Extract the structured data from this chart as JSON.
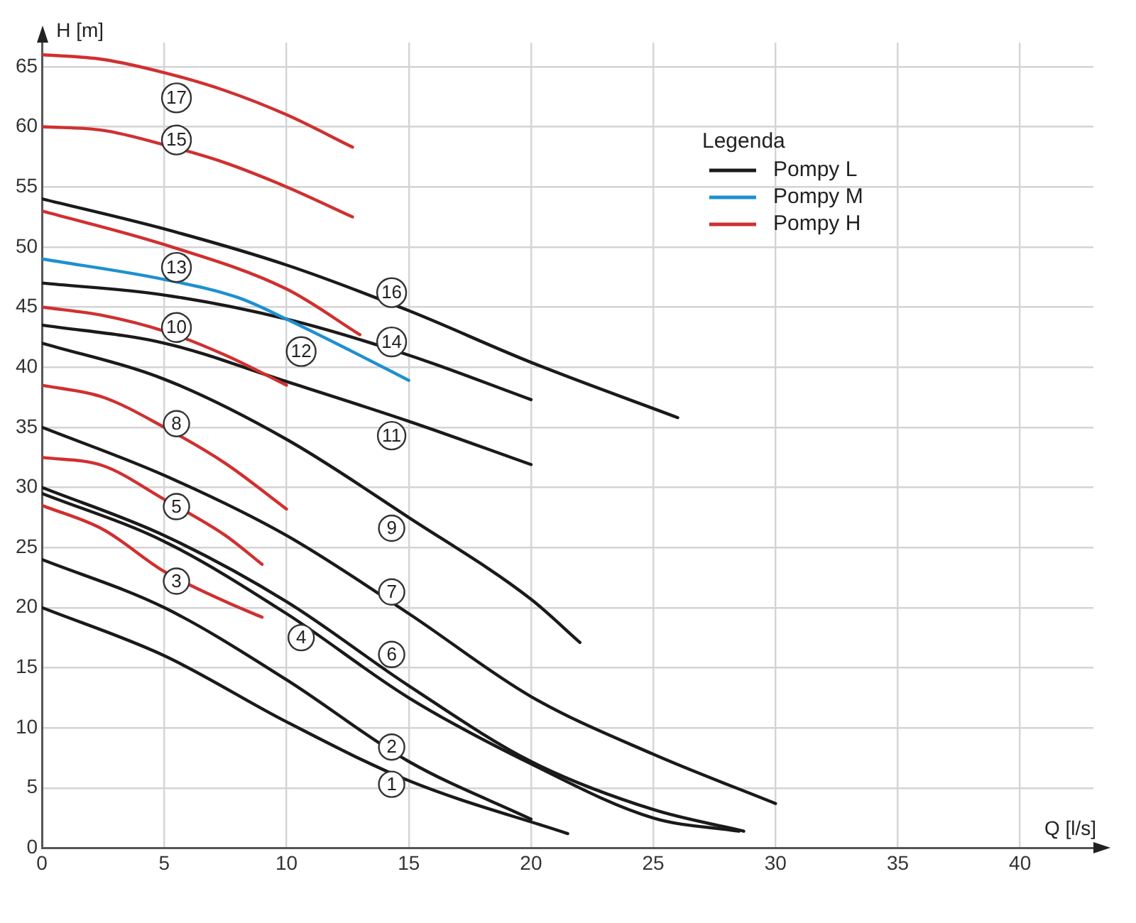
{
  "chart_data": {
    "type": "line",
    "xlabel": "Q [l/s]",
    "ylabel": "H [m]",
    "legend_title": "Legenda",
    "legend": "top right",
    "grid": true,
    "marker": "none",
    "line_style": "solid",
    "xlim": [
      0,
      43
    ],
    "ylim": [
      0,
      67
    ],
    "xticks": [
      0,
      5,
      10,
      15,
      20,
      25,
      30,
      35,
      40
    ],
    "yticks": [
      0,
      5,
      10,
      15,
      20,
      25,
      30,
      35,
      40,
      45,
      50,
      55,
      60,
      65
    ],
    "series": [
      {
        "name": "Pompy L",
        "color": "#1a1a1a",
        "x": [
          0,
          5,
          10,
          15,
          20,
          25,
          30
        ],
        "values": [
          35,
          31,
          26,
          19.5,
          12.6,
          7.8,
          3.7
        ]
      },
      {
        "name": "Pompy M",
        "color": "#1e90d0",
        "x": [
          0,
          5,
          8,
          10,
          12.5,
          15
        ],
        "values": [
          49,
          47.3,
          45.8,
          44,
          41.5,
          38.9
        ]
      },
      {
        "name": "Pompy H",
        "color": "#d03030",
        "x": [
          0,
          2.5,
          5,
          7.5,
          10,
          12.7
        ],
        "values": [
          66,
          65.6,
          64.5,
          63,
          61,
          58.3
        ]
      },
      {
        "color": "#d03030",
        "x": [
          0,
          2.5,
          5,
          7.5,
          10,
          12.7
        ],
        "values": [
          60,
          59.7,
          58.5,
          57,
          55,
          52.5
        ]
      },
      {
        "color": "#1a1a1a",
        "x": [
          0,
          5,
          10,
          15,
          20,
          26
        ],
        "values": [
          54,
          51.5,
          48.5,
          44.7,
          40.4,
          35.8
        ]
      },
      {
        "color": "#d03030",
        "x": [
          0,
          5,
          10,
          13
        ],
        "values": [
          53,
          50.2,
          46.5,
          42.7
        ]
      },
      {
        "color": "#1a1a1a",
        "x": [
          0,
          5,
          10,
          15,
          20
        ],
        "values": [
          47,
          46,
          44,
          41,
          37.3
        ]
      },
      {
        "color": "#d03030",
        "x": [
          0,
          2.5,
          5,
          7.5,
          10
        ],
        "values": [
          45,
          44.3,
          43,
          41,
          38.5
        ]
      },
      {
        "color": "#1a1a1a",
        "x": [
          0,
          5,
          10,
          15,
          20
        ],
        "values": [
          43.5,
          42,
          38.8,
          35.5,
          31.9
        ]
      },
      {
        "color": "#1a1a1a",
        "x": [
          0,
          5,
          10,
          15,
          20,
          22
        ],
        "values": [
          42,
          39,
          34,
          27.5,
          20.7,
          17.1
        ]
      },
      {
        "color": "#d03030",
        "x": [
          0,
          2.5,
          5,
          7.5,
          10
        ],
        "values": [
          38.5,
          37.5,
          35,
          32,
          28.2
        ]
      },
      {
        "color": "#d03030",
        "x": [
          0,
          2.5,
          5,
          7.5,
          9
        ],
        "values": [
          32.5,
          31.8,
          29,
          26,
          23.6
        ]
      },
      {
        "color": "#1a1a1a",
        "x": [
          0,
          5,
          10,
          15,
          20,
          25,
          28.7
        ],
        "values": [
          30,
          26,
          20.5,
          13.5,
          7.2,
          3.2,
          1.4
        ]
      },
      {
        "color": "#1a1a1a",
        "x": [
          0,
          5,
          10,
          15,
          20,
          25,
          28.5
        ],
        "values": [
          29.5,
          25.5,
          19.5,
          12.5,
          7,
          2.5,
          1.4
        ]
      },
      {
        "color": "#d03030",
        "x": [
          0,
          2.5,
          5,
          7.5,
          9
        ],
        "values": [
          28.5,
          26.5,
          23,
          20.5,
          19.2
        ]
      },
      {
        "color": "#1a1a1a",
        "x": [
          0,
          5,
          10,
          15,
          20
        ],
        "values": [
          24,
          20,
          14,
          7.2,
          2.4
        ]
      },
      {
        "color": "#1a1a1a",
        "x": [
          0,
          5,
          10,
          15,
          21.5
        ],
        "values": [
          20,
          16,
          10.5,
          5.6,
          1.2
        ]
      }
    ],
    "annotations": [
      {
        "text": "17",
        "x": 5.5,
        "y": 62.4
      },
      {
        "text": "15",
        "x": 5.5,
        "y": 58.9
      },
      {
        "text": "16",
        "x": 14.3,
        "y": 46.2
      },
      {
        "text": "13",
        "x": 5.5,
        "y": 48.3
      },
      {
        "text": "14",
        "x": 14.3,
        "y": 42.1
      },
      {
        "text": "12",
        "x": 10.6,
        "y": 41.3
      },
      {
        "text": "10",
        "x": 5.5,
        "y": 43.3
      },
      {
        "text": "11",
        "x": 14.3,
        "y": 34.3
      },
      {
        "text": "8",
        "x": 5.5,
        "y": 35.3
      },
      {
        "text": "9",
        "x": 14.3,
        "y": 26.6
      },
      {
        "text": "5",
        "x": 5.5,
        "y": 28.4
      },
      {
        "text": "7",
        "x": 14.3,
        "y": 21.3
      },
      {
        "text": "3",
        "x": 5.5,
        "y": 22.2
      },
      {
        "text": "4",
        "x": 10.6,
        "y": 17.5
      },
      {
        "text": "6",
        "x": 14.3,
        "y": 16.1
      },
      {
        "text": "2",
        "x": 14.3,
        "y": 8.4
      },
      {
        "text": "1",
        "x": 14.3,
        "y": 5.3
      }
    ]
  }
}
